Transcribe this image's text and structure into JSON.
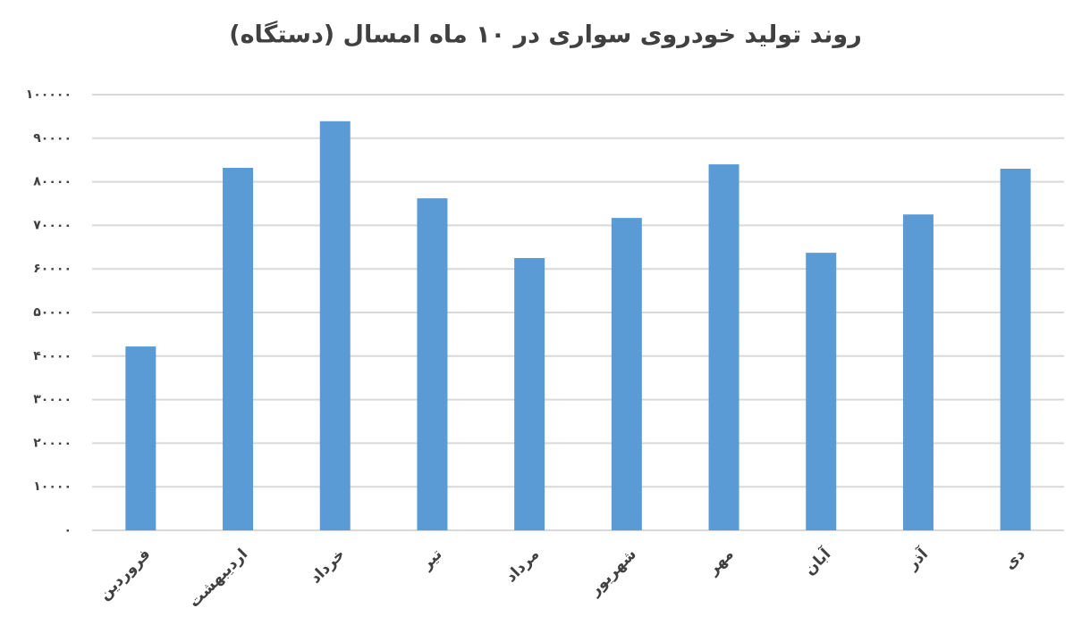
{
  "chart_data": {
    "type": "bar",
    "title": "روند تولید خودروی سواری در ۱۰ ماه امسال (دستگاه)",
    "categories": [
      "فروردین",
      "اردیبهشت",
      "خرداد",
      "تیر",
      "مرداد",
      "شهریور",
      "مهر",
      "آبان",
      "آذر",
      "دی"
    ],
    "values": [
      42200,
      83200,
      93900,
      76200,
      62500,
      71700,
      84000,
      63700,
      72500,
      83000
    ],
    "color": "#5b9bd5",
    "ylim": [
      0,
      100000
    ],
    "yticks": [
      {
        "value": 0,
        "label": "۰"
      },
      {
        "value": 10000,
        "label": "۱۰۰۰۰"
      },
      {
        "value": 20000,
        "label": "۲۰۰۰۰"
      },
      {
        "value": 30000,
        "label": "۳۰۰۰۰"
      },
      {
        "value": 40000,
        "label": "۴۰۰۰۰"
      },
      {
        "value": 50000,
        "label": "۵۰۰۰۰"
      },
      {
        "value": 60000,
        "label": "۶۰۰۰۰"
      },
      {
        "value": 70000,
        "label": "۷۰۰۰۰"
      },
      {
        "value": 80000,
        "label": "۸۰۰۰۰"
      },
      {
        "value": 90000,
        "label": "۹۰۰۰۰"
      },
      {
        "value": 100000,
        "label": "۱۰۰۰۰۰"
      }
    ],
    "grid": true
  }
}
